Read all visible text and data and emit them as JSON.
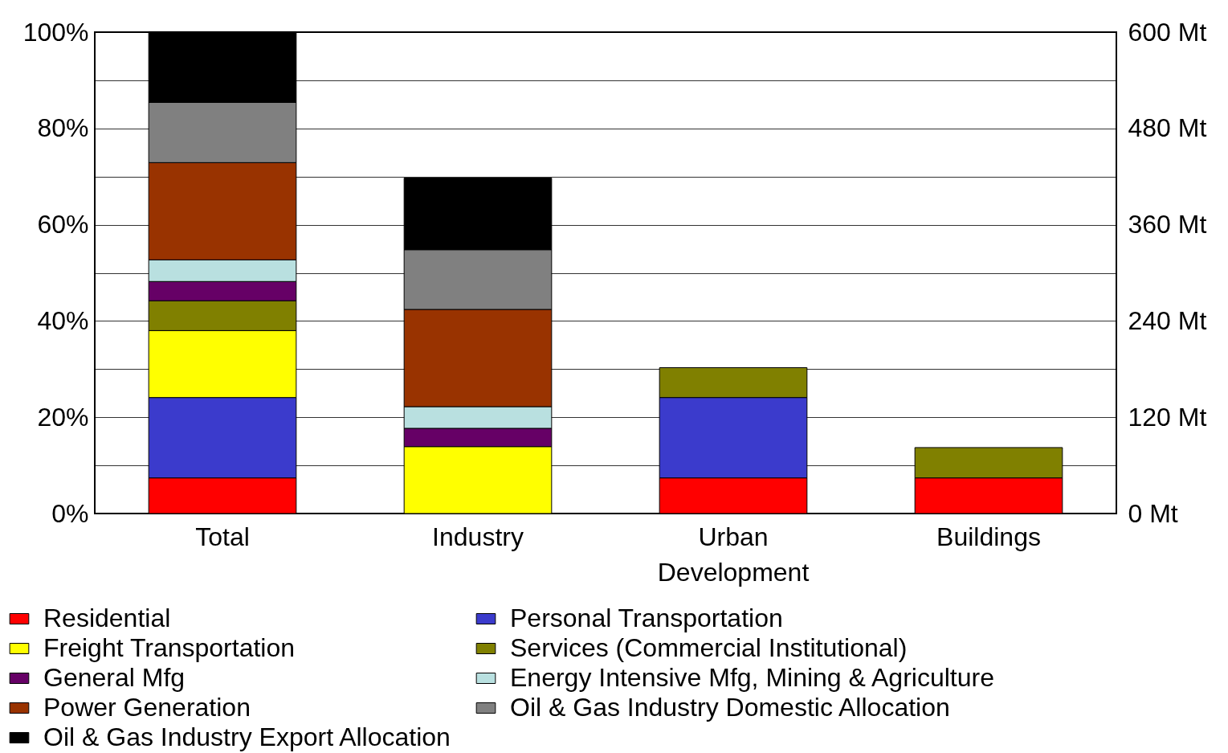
{
  "chart_data": {
    "type": "bar",
    "stacked": true,
    "categories": [
      "Total",
      "Industry",
      "Urban Development",
      "Buildings"
    ],
    "series": [
      {
        "name": "Residential",
        "color": "#ff0000",
        "values": [
          7.4,
          null,
          7.4,
          7.4
        ]
      },
      {
        "name": "Personal Transportation",
        "color": "#3b3bcc",
        "values": [
          16.7,
          null,
          16.7,
          null
        ]
      },
      {
        "name": "Freight Transportation",
        "color": "#ffff00",
        "values": [
          13.9,
          13.9,
          null,
          null
        ]
      },
      {
        "name": "Services (Commercial Institutional)",
        "color": "#808000",
        "values": [
          6.2,
          null,
          6.2,
          6.3
        ]
      },
      {
        "name": "General Mfg",
        "color": "#660066",
        "values": [
          4.0,
          3.8,
          null,
          null
        ]
      },
      {
        "name": "Energy Intensive Mfg, Mining & Agriculture",
        "color": "#b9e0e0",
        "values": [
          4.5,
          4.5,
          null,
          null
        ]
      },
      {
        "name": "Power Generation",
        "color": "#993300",
        "values": [
          20.2,
          20.2,
          null,
          null
        ]
      },
      {
        "name": "Oil & Gas Industry Domestic Allocation",
        "color": "#808080",
        "values": [
          12.5,
          12.4,
          null,
          null
        ]
      },
      {
        "name": "Oil & Gas Industry Export Allocation",
        "color": "#000000",
        "values": [
          14.7,
          14.9,
          null,
          null
        ]
      }
    ],
    "ylim": [
      0,
      100
    ],
    "yticks": [
      {
        "value": 0,
        "label": "0%"
      },
      {
        "value": 10,
        "label": null
      },
      {
        "value": 20,
        "label": "20%"
      },
      {
        "value": 30,
        "label": null
      },
      {
        "value": 40,
        "label": "40%"
      },
      {
        "value": 50,
        "label": null
      },
      {
        "value": 60,
        "label": "60%"
      },
      {
        "value": 70,
        "label": null
      },
      {
        "value": 80,
        "label": "80%"
      },
      {
        "value": 90,
        "label": null
      },
      {
        "value": 100,
        "label": "100%"
      }
    ],
    "y2lim": [
      0,
      600
    ],
    "y2ticks": [
      {
        "value": 0,
        "label": "0 Mt"
      },
      {
        "value": 120,
        "label": "120 Mt"
      },
      {
        "value": 240,
        "label": "240 Mt"
      },
      {
        "value": 360,
        "label": "360 Mt"
      },
      {
        "value": 480,
        "label": "480 Mt"
      },
      {
        "value": 600,
        "label": "600 Mt"
      }
    ],
    "grid": "y",
    "legend": "bottom"
  }
}
